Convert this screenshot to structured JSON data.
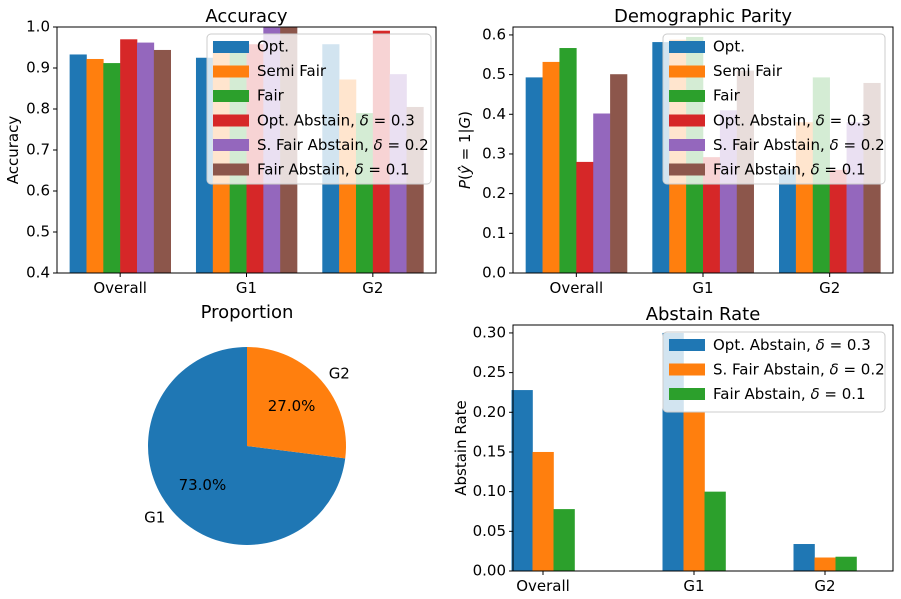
{
  "colors": {
    "Opt.": "#1f77b4",
    "Semi Fair": "#ff7f0e",
    "Fair": "#2ca02c",
    "Opt. Abstain, δ = 0.3": "#d62728",
    "S. Fair Abstain, δ = 0.2": "#9467bd",
    "Fair Abstain, δ = 0.1": "#8c564b"
  },
  "chart_data": [
    {
      "id": "accuracy",
      "type": "bar",
      "title": "Accuracy",
      "xlabel": "",
      "ylabel": "Accuracy",
      "categories": [
        "Overall",
        "G1",
        "G2"
      ],
      "ylim": [
        0.4,
        1.0
      ],
      "yticks": [
        0.4,
        0.5,
        0.6,
        0.7,
        0.8,
        0.9,
        1.0
      ],
      "ytick_labels": [
        "0.4",
        "0.5",
        "0.6",
        "0.7",
        "0.8",
        "0.9",
        "1.0"
      ],
      "legend": "top-right",
      "series": [
        {
          "name": "Opt.",
          "values": [
            0.933,
            0.925,
            0.958
          ]
        },
        {
          "name": "Semi Fair",
          "values": [
            0.922,
            0.962,
            0.872
          ]
        },
        {
          "name": "Fair",
          "values": [
            0.912,
            0.955,
            0.79
          ]
        },
        {
          "name": "Opt. Abstain, δ = 0.3",
          "values": [
            0.97,
            0.958,
            0.991
          ]
        },
        {
          "name": "S. Fair Abstain, δ = 0.2",
          "values": [
            0.962,
            1.0,
            0.885
          ]
        },
        {
          "name": "Fair Abstain, δ = 0.1",
          "values": [
            0.944,
            1.0,
            0.805
          ]
        }
      ]
    },
    {
      "id": "parity",
      "type": "bar",
      "title": "Demographic Parity",
      "xlabel": "",
      "ylabel": "P(ŷ = 1|G)",
      "categories": [
        "Overall",
        "G1",
        "G2"
      ],
      "ylim": [
        0.0,
        0.62
      ],
      "yticks": [
        0.0,
        0.1,
        0.2,
        0.3,
        0.4,
        0.5,
        0.6
      ],
      "ytick_labels": [
        "0.0",
        "0.1",
        "0.2",
        "0.3",
        "0.4",
        "0.5",
        "0.6"
      ],
      "legend": "top-right",
      "series": [
        {
          "name": "Opt.",
          "values": [
            0.493,
            0.582,
            0.262
          ]
        },
        {
          "name": "Semi Fair",
          "values": [
            0.532,
            0.588,
            0.38
          ]
        },
        {
          "name": "Fair",
          "values": [
            0.567,
            0.595,
            0.493
          ]
        },
        {
          "name": "Opt. Abstain, δ = 0.3",
          "values": [
            0.28,
            0.292,
            0.26
          ]
        },
        {
          "name": "S. Fair Abstain, δ = 0.2",
          "values": [
            0.402,
            0.41,
            0.38
          ]
        },
        {
          "name": "Fair Abstain, δ = 0.1",
          "values": [
            0.501,
            0.51,
            0.479
          ]
        }
      ]
    },
    {
      "id": "proportion",
      "type": "pie",
      "title": "Proportion",
      "labels": [
        "G1",
        "G2"
      ],
      "values": [
        73.0,
        27.0
      ],
      "pct_labels": [
        "73.0%",
        "27.0%"
      ],
      "colors": [
        "#1f77b4",
        "#ff7f0e"
      ]
    },
    {
      "id": "abstain",
      "type": "bar",
      "title": "Abstain Rate",
      "xlabel": "",
      "ylabel": "Abstain Rate",
      "categories": [
        "Overall",
        "G1",
        "G2"
      ],
      "ylim": [
        0.0,
        0.31
      ],
      "yticks": [
        0.0,
        0.05,
        0.1,
        0.15,
        0.2,
        0.25,
        0.3
      ],
      "ytick_labels": [
        "0.00",
        "0.05",
        "0.10",
        "0.15",
        "0.20",
        "0.25",
        "0.30"
      ],
      "legend": "top-right",
      "series": [
        {
          "name": "Opt. Abstain, δ = 0.3",
          "color": "#1f77b4",
          "values": [
            0.228,
            0.3,
            0.034
          ]
        },
        {
          "name": "S. Fair Abstain, δ = 0.2",
          "color": "#ff7f0e",
          "values": [
            0.15,
            0.2,
            0.017
          ]
        },
        {
          "name": "Fair Abstain, δ = 0.1",
          "color": "#2ca02c",
          "values": [
            0.078,
            0.1,
            0.018
          ]
        }
      ]
    }
  ]
}
